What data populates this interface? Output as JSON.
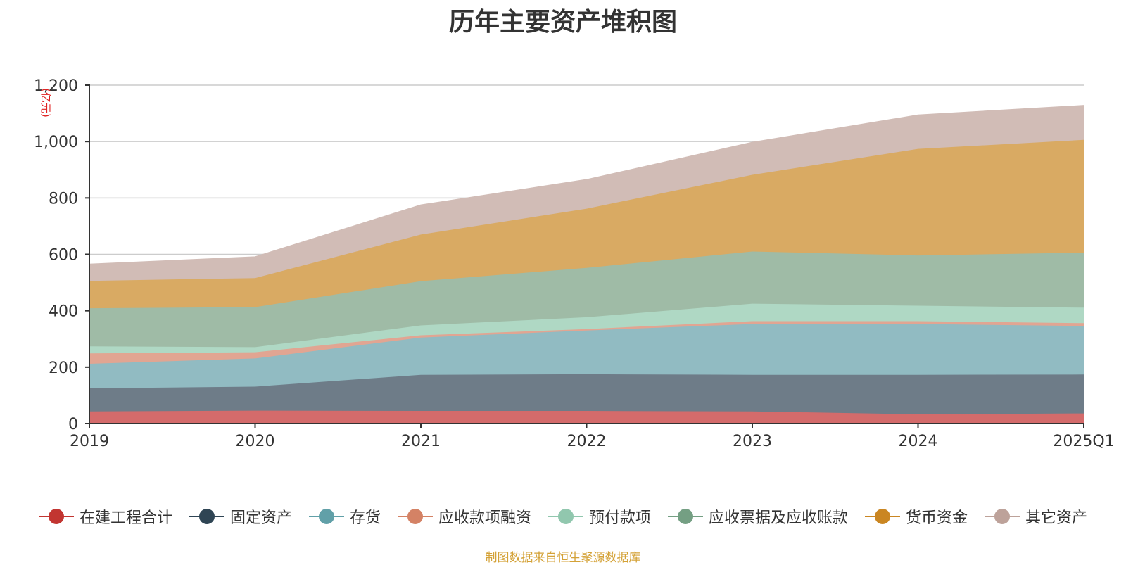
{
  "chart_data": {
    "type": "area",
    "stacked": true,
    "title": "历年主要资产堆积图",
    "unit_label": "(亿元)",
    "categories": [
      "2019",
      "2020",
      "2021",
      "2022",
      "2023",
      "2024",
      "2025Q1"
    ],
    "ylim": [
      0,
      1200
    ],
    "yticks": [
      0,
      200,
      400,
      600,
      800,
      1000,
      1200
    ],
    "ytick_labels": [
      "0",
      "200",
      "400",
      "600",
      "800",
      "1,000",
      "1,200"
    ],
    "grid": true,
    "legend_position": "bottom",
    "series": [
      {
        "name": "在建工程合计",
        "color": "#c23531",
        "area_color": "#d46b6b",
        "values": [
          43,
          46,
          45,
          45,
          43,
          33,
          36
        ]
      },
      {
        "name": "固定资产",
        "color": "#2f4554",
        "area_color": "#6e7c88",
        "values": [
          82,
          85,
          128,
          130,
          130,
          140,
          138
        ]
      },
      {
        "name": "存货",
        "color": "#61a0a8",
        "area_color": "#91bbc2",
        "values": [
          87,
          100,
          132,
          155,
          180,
          180,
          172
        ]
      },
      {
        "name": "应收款项融资",
        "color": "#d48265",
        "area_color": "#e1a592",
        "values": [
          37,
          22,
          8,
          5,
          10,
          10,
          10
        ]
      },
      {
        "name": "预付款项",
        "color": "#91c7ae",
        "area_color": "#afd8c4",
        "values": [
          25,
          18,
          35,
          42,
          62,
          55,
          55
        ]
      },
      {
        "name": "应收票据及应收账款",
        "color": "#749f83",
        "area_color": "#9fbba6",
        "values": [
          135,
          142,
          157,
          175,
          185,
          178,
          195
        ]
      },
      {
        "name": "货币资金",
        "color": "#ca8622",
        "area_color": "#d9aa63",
        "values": [
          97,
          103,
          165,
          210,
          272,
          378,
          400
        ]
      },
      {
        "name": "其它资产",
        "color": "#bda29a",
        "area_color": "#d1bcb6",
        "values": [
          59,
          75,
          105,
          103,
          115,
          120,
          122
        ]
      }
    ]
  },
  "source": "制图数据来自恒生聚源数据库"
}
